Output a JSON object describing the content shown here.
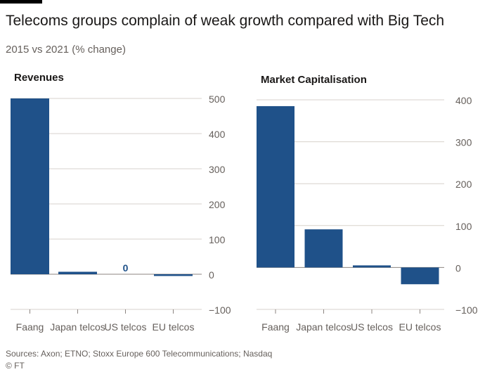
{
  "header": {
    "title": "Telecoms groups complain of weak growth compared with Big Tech",
    "subtitle": "2015 vs 2021 (% change)"
  },
  "footer": {
    "source": "Sources: Axon; ETNO; Stoxx Europe 600 Telecommunications; Nasdaq",
    "credit": "© FT"
  },
  "colors": {
    "bar": "#1f5189",
    "grid": "#d7d2cc",
    "zero_line": "#8c8581",
    "label": "#66605c",
    "title_text": "#1a1817"
  },
  "chart_data": [
    {
      "type": "bar",
      "title": "Revenues",
      "categories": [
        "Faang",
        "Japan telcos",
        "US telcos",
        "EU telcos"
      ],
      "values": [
        500,
        7,
        0,
        -5
      ],
      "data_labels": [
        "",
        "",
        "0",
        ""
      ],
      "ylim": [
        -100,
        500
      ],
      "yticks": [
        -100,
        0,
        100,
        200,
        300,
        400,
        500
      ],
      "grid": true,
      "y_axis_side": "right"
    },
    {
      "type": "bar",
      "title": "Market Capitalisation",
      "categories": [
        "Faang",
        "Japan telcos",
        "US telcos",
        "EU telcos"
      ],
      "values": [
        385,
        91,
        5,
        -40
      ],
      "ylim": [
        -100,
        400
      ],
      "yticks": [
        -100,
        0,
        100,
        200,
        300,
        400
      ],
      "grid": true,
      "y_axis_side": "right"
    }
  ]
}
